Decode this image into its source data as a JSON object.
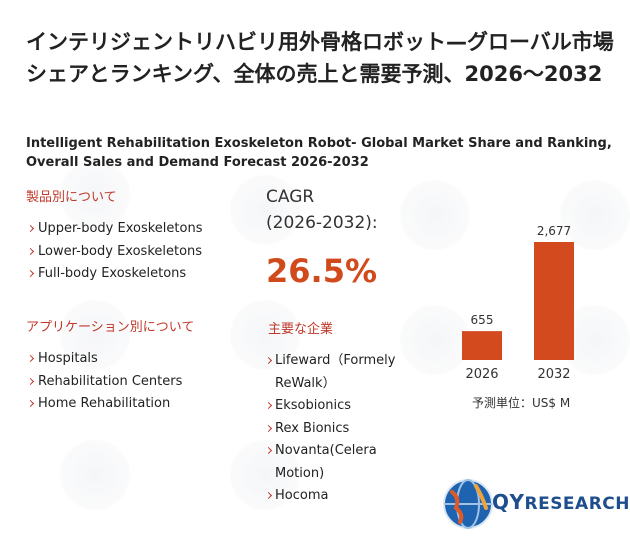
{
  "title_jp": "インテリジェントリハビリ用外骨格ロボット—グローバル市場シェアとランキング、全体の売上と需要予測、2026〜2032",
  "title_en": "Intelligent Rehabilitation Exoskeleton Robot- Global Market Share and Ranking, Overall Sales and Demand Forecast 2026-2032",
  "products": {
    "heading": "製品別について",
    "items": [
      "Upper-body Exoskeletons",
      "Lower-body Exoskeletons",
      "Full-body Exoskeletons"
    ]
  },
  "applications": {
    "heading": "アプリケーション別について",
    "items": [
      "Hospitals",
      "Rehabilitation Centers",
      "Home Rehabilitation"
    ]
  },
  "cagr": {
    "label_line1": "CAGR",
    "label_line2": "(2026-2032):",
    "value": "26.5%"
  },
  "companies": {
    "heading": "主要な企業",
    "items": [
      "Lifeward（Formely ReWalk）",
      "Eksobionics",
      "Rex Bionics",
      "Novanta(Celera Motion)",
      "Hocoma"
    ]
  },
  "chart_data": {
    "type": "bar",
    "categories": [
      "2026",
      "2032"
    ],
    "values": [
      655,
      2677
    ],
    "value_labels": [
      "655",
      "2,677"
    ],
    "unit": "予測単位：US$ M",
    "bar_color": "#d24a1e"
  },
  "logo": {
    "brand_q": "QY",
    "brand_rest": "RESEARCH"
  }
}
